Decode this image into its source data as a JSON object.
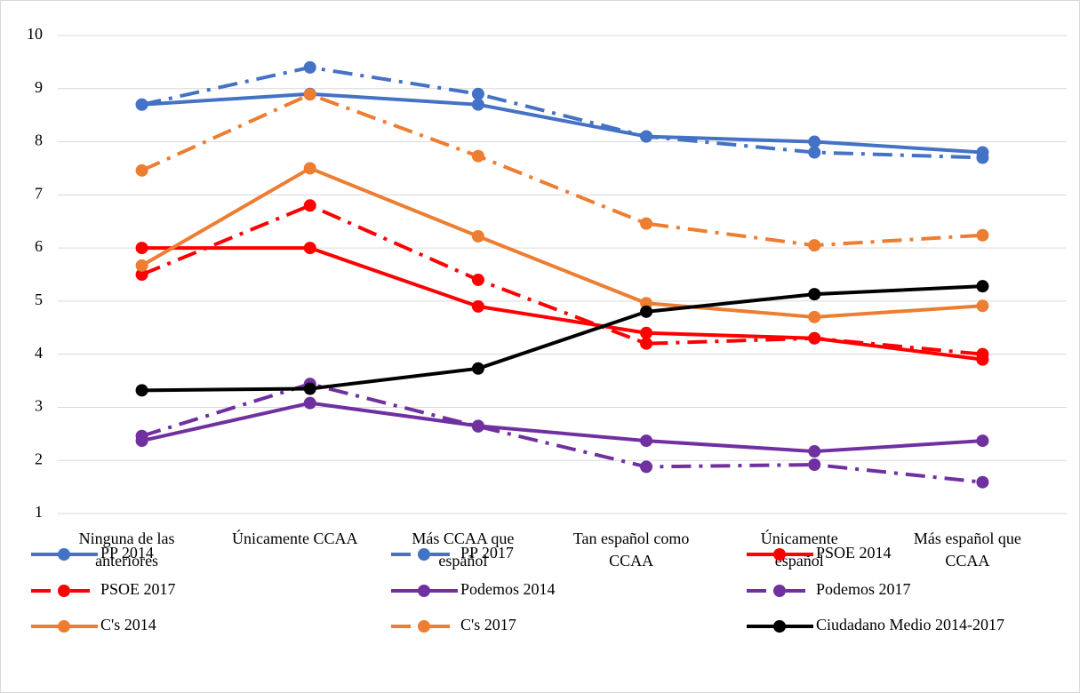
{
  "chart_data": {
    "type": "line",
    "categories": [
      "Ninguna de las\nanteriores",
      "Únicamente CCAA",
      "Más CCAA que\nespañol",
      "Tan español como\nCCAA",
      "Únicamente\nespañol",
      "Más español que\nCCAA"
    ],
    "ylim": [
      1,
      10
    ],
    "yticks": [
      1,
      2,
      3,
      4,
      5,
      6,
      7,
      8,
      9,
      10
    ],
    "grid": true,
    "legend": "bottom",
    "series": [
      {
        "name": "PP 2014",
        "color": "#4472c4",
        "line_style": "solid",
        "values": [
          8.7,
          8.9,
          8.7,
          8.1,
          8.0,
          7.8
        ]
      },
      {
        "name": "PP 2017",
        "color": "#4472c4",
        "line_style": "dash-dot",
        "values": [
          8.7,
          9.4,
          8.9,
          8.1,
          7.8,
          7.7
        ]
      },
      {
        "name": "PSOE 2014",
        "color": "#ff0000",
        "line_style": "solid",
        "values": [
          6.0,
          6.0,
          4.9,
          4.4,
          4.3,
          3.9
        ]
      },
      {
        "name": "PSOE 2017",
        "color": "#ff0000",
        "line_style": "dash-dot",
        "values": [
          5.5,
          6.8,
          5.4,
          4.2,
          4.3,
          4.0
        ]
      },
      {
        "name": "Podemos 2014",
        "color": "#7030a0",
        "line_style": "solid",
        "values": [
          2.37,
          3.08,
          2.65,
          2.37,
          2.17,
          2.37
        ]
      },
      {
        "name": "Podemos 2017",
        "color": "#7030a0",
        "line_style": "dash-dot",
        "values": [
          2.46,
          3.44,
          2.64,
          1.88,
          1.92,
          1.59
        ]
      },
      {
        "name": "C's 2014",
        "color": "#ed7d31",
        "line_style": "solid",
        "values": [
          5.67,
          7.5,
          6.22,
          4.96,
          4.7,
          4.91
        ]
      },
      {
        "name": "C's 2017",
        "color": "#ed7d31",
        "line_style": "dash-dot",
        "values": [
          7.46,
          8.89,
          7.73,
          6.46,
          6.05,
          6.24
        ]
      },
      {
        "name": "Ciudadano Medio 2014-2017",
        "color": "#000000",
        "line_style": "solid",
        "values": [
          3.32,
          3.35,
          3.73,
          4.8,
          5.13,
          5.28
        ]
      }
    ]
  }
}
